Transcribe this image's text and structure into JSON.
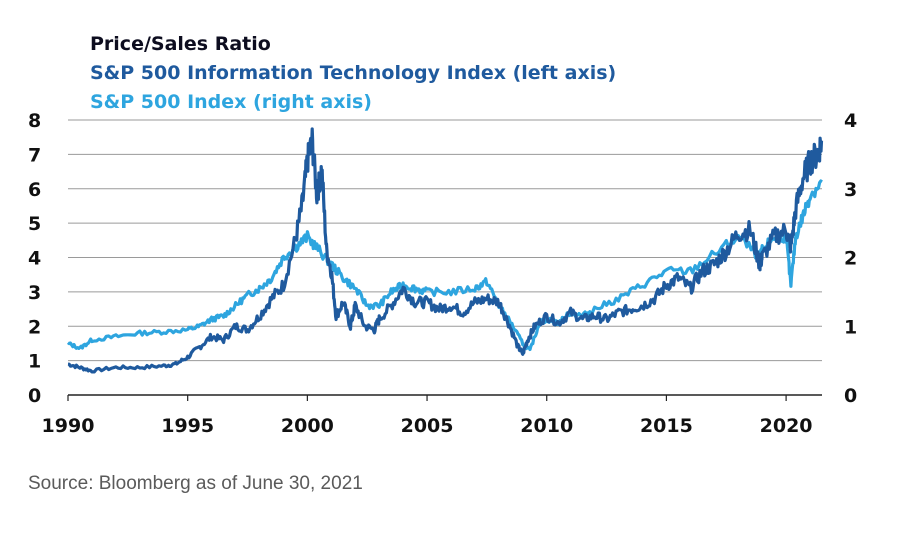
{
  "chart_data": {
    "type": "line",
    "title": "Price/Sales Ratio",
    "legend_position": "top-left",
    "source": "Source: Bloomberg as of June 30, 2021",
    "x_ticks": [
      "1990",
      "1995",
      "2000",
      "2005",
      "2010",
      "2015",
      "2020"
    ],
    "xlim": [
      1990,
      2021.5
    ],
    "left_axis": {
      "ylim": [
        0,
        8
      ],
      "ticks": [
        "0",
        "1",
        "2",
        "3",
        "4",
        "5",
        "6",
        "7",
        "8"
      ]
    },
    "right_axis": {
      "ylim": [
        0,
        4
      ],
      "ticks": [
        "0",
        "1",
        "2",
        "3",
        "4"
      ]
    },
    "grid": true,
    "series": [
      {
        "name": "S&P 500 Information Technology Index (left axis)",
        "axis": "left",
        "color": "#1f5a9e",
        "x": [
          1990,
          1990.5,
          1991,
          1992,
          1993,
          1994,
          1994.5,
          1995,
          1995.5,
          1996,
          1996.5,
          1997,
          1997.5,
          1998,
          1998.5,
          1999,
          1999.5,
          1999.8,
          2000.0,
          2000.2,
          2000.4,
          2000.6,
          2000.8,
          2001.0,
          2001.2,
          2001.5,
          2001.8,
          2002.0,
          2002.4,
          2002.8,
          2003.0,
          2003.5,
          2004.0,
          2004.5,
          2005.0,
          2005.5,
          2006.0,
          2006.5,
          2007.0,
          2007.5,
          2008.0,
          2008.4,
          2008.8,
          2009.0,
          2009.2,
          2009.5,
          2010.0,
          2010.5,
          2011.0,
          2011.5,
          2012.0,
          2012.5,
          2013.0,
          2013.5,
          2014.0,
          2014.5,
          2015.0,
          2015.5,
          2016.0,
          2016.5,
          2017.0,
          2017.5,
          2018.0,
          2018.5,
          2018.9,
          2019.0,
          2019.5,
          2020.0,
          2020.2,
          2020.4,
          2020.7,
          2021.0,
          2021.3,
          2021.5
        ],
        "values": [
          0.9,
          0.8,
          0.7,
          0.8,
          0.8,
          0.85,
          0.9,
          1.1,
          1.4,
          1.7,
          1.6,
          2.0,
          1.9,
          2.3,
          2.8,
          3.2,
          4.5,
          5.6,
          6.8,
          7.4,
          5.8,
          6.6,
          4.2,
          3.6,
          2.3,
          2.7,
          2.0,
          2.6,
          2.0,
          1.9,
          2.2,
          2.6,
          3.1,
          2.7,
          2.7,
          2.5,
          2.6,
          2.4,
          2.7,
          2.8,
          2.7,
          2.1,
          1.4,
          1.2,
          1.6,
          2.0,
          2.3,
          2.1,
          2.4,
          2.2,
          2.3,
          2.2,
          2.4,
          2.5,
          2.6,
          2.8,
          3.2,
          3.4,
          3.1,
          3.6,
          3.8,
          4.2,
          4.7,
          4.8,
          3.8,
          4.0,
          4.6,
          4.8,
          4.3,
          5.4,
          6.3,
          6.8,
          7.0,
          7.4
        ]
      },
      {
        "name": "S&P 500 Index (right axis)",
        "axis": "right",
        "color": "#2ea5df",
        "x": [
          1990,
          1990.5,
          1991,
          1992,
          1993,
          1994,
          1995,
          1995.5,
          1996,
          1996.5,
          1997,
          1997.5,
          1998,
          1998.5,
          1999,
          1999.5,
          2000.0,
          2000.5,
          2001.0,
          2001.5,
          2002.0,
          2002.5,
          2003.0,
          2003.5,
          2004.0,
          2004.5,
          2005.0,
          2006.0,
          2007.0,
          2007.5,
          2008.0,
          2008.5,
          2009.0,
          2009.3,
          2009.7,
          2010.0,
          2010.5,
          2011.0,
          2011.5,
          2012.0,
          2013.0,
          2014.0,
          2015.0,
          2016.0,
          2017.0,
          2018.0,
          2018.9,
          2019.0,
          2019.5,
          2020.0,
          2020.2,
          2020.4,
          2020.7,
          2021.0,
          2021.5
        ],
        "values": [
          0.75,
          0.68,
          0.8,
          0.85,
          0.9,
          0.92,
          0.95,
          1.0,
          1.1,
          1.15,
          1.3,
          1.45,
          1.55,
          1.7,
          2.0,
          2.15,
          2.3,
          2.1,
          1.9,
          1.7,
          1.55,
          1.3,
          1.3,
          1.5,
          1.6,
          1.55,
          1.5,
          1.5,
          1.55,
          1.65,
          1.3,
          1.05,
          0.75,
          0.65,
          1.05,
          1.1,
          1.05,
          1.2,
          1.15,
          1.25,
          1.4,
          1.6,
          1.8,
          1.8,
          2.05,
          2.3,
          2.0,
          2.1,
          2.3,
          2.3,
          1.6,
          2.3,
          2.6,
          2.9,
          3.1
        ]
      }
    ]
  }
}
